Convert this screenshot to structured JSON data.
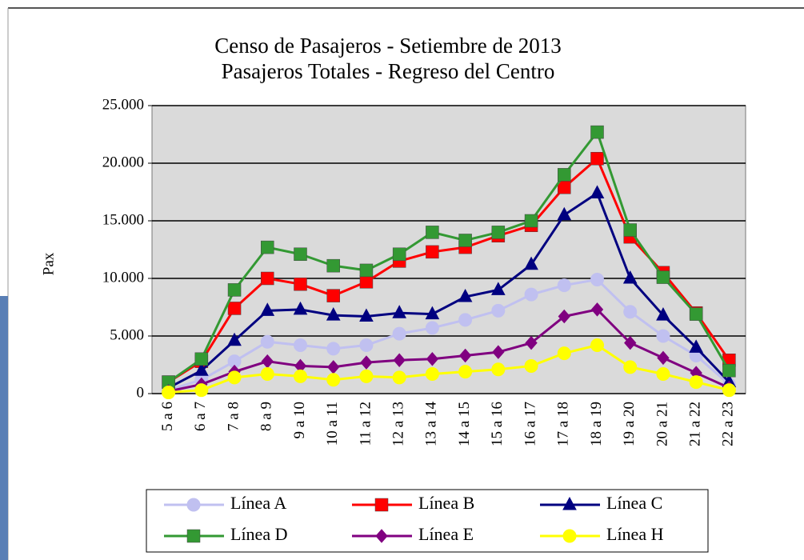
{
  "chart_data": {
    "type": "line",
    "title": "Censo de Pasajeros - Setiembre de 2013",
    "subtitle": "Pasajeros Totales - Regreso del Centro",
    "y_label": "Pax",
    "categories": [
      "5 a 6",
      "6 a 7",
      "7 a 8",
      "8 a 9",
      "9 a 10",
      "10 a 11",
      "11 a 12",
      "12 a 13",
      "13 a 14",
      "14 a 15",
      "15 a 16",
      "16 a 17",
      "17 a 18",
      "18 a 19",
      "19 a 20",
      "20 a 21",
      "21 a 22",
      "22 a 23"
    ],
    "series": [
      {
        "name": "Línea A",
        "color": "#c0c0f0",
        "marker": "circle",
        "values": [
          300,
          1200,
          2800,
          4500,
          4200,
          3900,
          4200,
          5200,
          5700,
          6400,
          7200,
          8600,
          9400,
          9900,
          7100,
          5000,
          3300,
          800
        ]
      },
      {
        "name": "Línea B",
        "color": "#ff0000",
        "marker": "square",
        "values": [
          1000,
          2800,
          7400,
          10000,
          9500,
          8500,
          9700,
          11500,
          12300,
          12700,
          13700,
          14600,
          17900,
          20400,
          13600,
          10500,
          7000,
          2900
        ]
      },
      {
        "name": "Línea C",
        "color": "#000080",
        "marker": "triangle",
        "values": [
          500,
          2000,
          4600,
          7200,
          7300,
          6800,
          6700,
          7000,
          6900,
          8400,
          9000,
          11200,
          15500,
          17400,
          10000,
          6800,
          4000,
          1000
        ]
      },
      {
        "name": "Línea D",
        "color": "#339933",
        "marker": "square",
        "values": [
          1000,
          3000,
          9000,
          12700,
          12100,
          11100,
          10700,
          12100,
          14000,
          13300,
          14000,
          15000,
          19000,
          22700,
          14200,
          10100,
          6900,
          2000
        ]
      },
      {
        "name": "Línea E",
        "color": "#800080",
        "marker": "diamond",
        "values": [
          200,
          800,
          1900,
          2800,
          2400,
          2300,
          2700,
          2900,
          3000,
          3300,
          3600,
          4400,
          6700,
          7300,
          4400,
          3100,
          1800,
          500
        ]
      },
      {
        "name": "Línea H",
        "color": "#ffff00",
        "marker": "circle",
        "values": [
          100,
          300,
          1400,
          1700,
          1500,
          1200,
          1500,
          1400,
          1700,
          1900,
          2100,
          2400,
          3500,
          4200,
          2300,
          1700,
          1000,
          300
        ]
      }
    ],
    "ylim": [
      0,
      25000
    ],
    "yticks": [
      0,
      {
        "value": 5000,
        "label": "5.000"
      },
      {
        "value": 10000,
        "label": "10.000"
      },
      {
        "value": 15000,
        "label": "15.000"
      },
      {
        "value": 20000,
        "label": "20.000"
      },
      {
        "value": 25000,
        "label": "25.000"
      }
    ],
    "grid": true,
    "legend": "bottom"
  }
}
